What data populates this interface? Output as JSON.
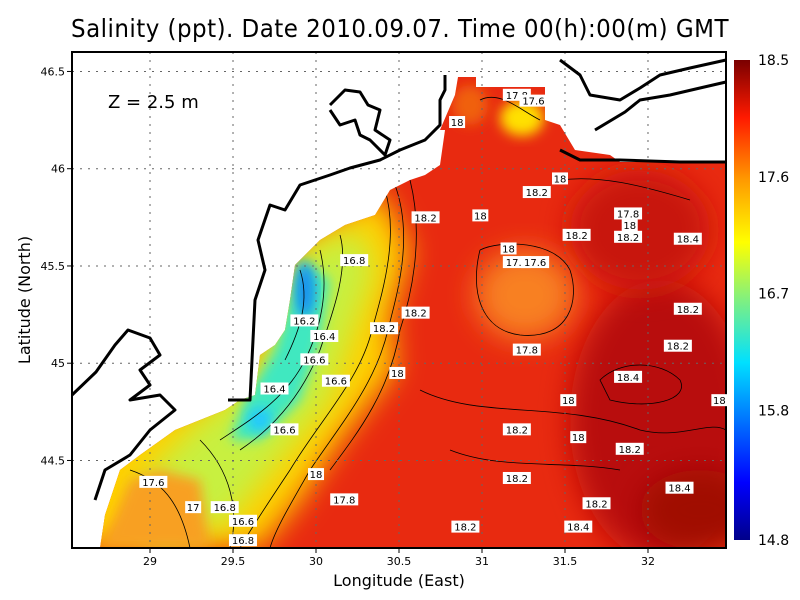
{
  "title": "Salinity (ppt). Date 2010.09.07. Time 00(h):00(m) GMT",
  "depth_label": "Z = 2.5 m",
  "chart_data": {
    "type": "heatmap",
    "title": "Salinity (ppt). Date 2010.09.07. Time 00(h):00(m) GMT",
    "xlabel": "Longitude (East)",
    "ylabel": "Latitude (North)",
    "xlim": [
      28.53,
      32.47
    ],
    "ylim": [
      44.05,
      46.6
    ],
    "xticks": [
      "29",
      "29.5",
      "30",
      "30.5",
      "31",
      "31.5",
      "32"
    ],
    "yticks": [
      "44.5",
      "45",
      "45.5",
      "46",
      "46.5"
    ],
    "grid": true,
    "colorbar": {
      "ticks": [
        "18.5",
        "17.6",
        "16.7",
        "15.8",
        "14.8"
      ],
      "range": [
        14.8,
        18.5
      ],
      "colormap": "jet",
      "placement": "right"
    },
    "contour_labels": [
      {
        "v": "17.8",
        "lon": 31.21,
        "lat": 46.38
      },
      {
        "v": "17.6",
        "lon": 31.31,
        "lat": 46.35
      },
      {
        "v": "18",
        "lon": 30.85,
        "lat": 46.24
      },
      {
        "v": "18",
        "lon": 31.47,
        "lat": 45.95
      },
      {
        "v": "18.2",
        "lon": 31.33,
        "lat": 45.88
      },
      {
        "v": "18.2",
        "lon": 30.66,
        "lat": 45.75
      },
      {
        "v": "18",
        "lon": 30.99,
        "lat": 45.76
      },
      {
        "v": "17.8",
        "lon": 31.88,
        "lat": 45.77
      },
      {
        "v": "18",
        "lon": 31.89,
        "lat": 45.71
      },
      {
        "v": "18.2",
        "lon": 31.88,
        "lat": 45.65
      },
      {
        "v": "18.2",
        "lon": 31.57,
        "lat": 45.66
      },
      {
        "v": "18.4",
        "lon": 32.24,
        "lat": 45.64
      },
      {
        "v": "18",
        "lon": 31.16,
        "lat": 45.59
      },
      {
        "v": "17.8",
        "lon": 31.21,
        "lat": 45.52
      },
      {
        "v": "17.6",
        "lon": 31.32,
        "lat": 45.52
      },
      {
        "v": "16.8",
        "lon": 30.23,
        "lat": 45.53
      },
      {
        "v": "18.2",
        "lon": 30.6,
        "lat": 45.26
      },
      {
        "v": "18.2",
        "lon": 32.24,
        "lat": 45.28
      },
      {
        "v": "16.2",
        "lon": 29.93,
        "lat": 45.22
      },
      {
        "v": "18.2",
        "lon": 30.41,
        "lat": 45.18
      },
      {
        "v": "16.4",
        "lon": 30.05,
        "lat": 45.14
      },
      {
        "v": "18.2",
        "lon": 32.18,
        "lat": 45.09
      },
      {
        "v": "17.8",
        "lon": 31.27,
        "lat": 45.07
      },
      {
        "v": "16.6",
        "lon": 29.99,
        "lat": 45.02
      },
      {
        "v": "18",
        "lon": 30.49,
        "lat": 44.95
      },
      {
        "v": "16.6",
        "lon": 30.12,
        "lat": 44.91
      },
      {
        "v": "18.4",
        "lon": 31.88,
        "lat": 44.93
      },
      {
        "v": "16.4",
        "lon": 29.75,
        "lat": 44.87
      },
      {
        "v": "18",
        "lon": 31.52,
        "lat": 44.81
      },
      {
        "v": "18",
        "lon": 32.43,
        "lat": 44.81
      },
      {
        "v": "16.6",
        "lon": 29.81,
        "lat": 44.66
      },
      {
        "v": "18.2",
        "lon": 31.21,
        "lat": 44.66
      },
      {
        "v": "18",
        "lon": 31.58,
        "lat": 44.62
      },
      {
        "v": "18.2",
        "lon": 31.89,
        "lat": 44.56
      },
      {
        "v": "18",
        "lon": 30.0,
        "lat": 44.43
      },
      {
        "v": "18.2",
        "lon": 31.21,
        "lat": 44.41
      },
      {
        "v": "17.6",
        "lon": 29.02,
        "lat": 44.39
      },
      {
        "v": "18.4",
        "lon": 32.19,
        "lat": 44.36
      },
      {
        "v": "17.8",
        "lon": 30.17,
        "lat": 44.3
      },
      {
        "v": "18.2",
        "lon": 31.69,
        "lat": 44.28
      },
      {
        "v": "17",
        "lon": 29.26,
        "lat": 44.26
      },
      {
        "v": "16.8",
        "lon": 29.45,
        "lat": 44.26
      },
      {
        "v": "16.6",
        "lon": 29.56,
        "lat": 44.19
      },
      {
        "v": "18.2",
        "lon": 30.9,
        "lat": 44.16
      },
      {
        "v": "18.4",
        "lon": 31.58,
        "lat": 44.16
      },
      {
        "v": "16.8",
        "lon": 29.56,
        "lat": 44.09
      }
    ]
  }
}
